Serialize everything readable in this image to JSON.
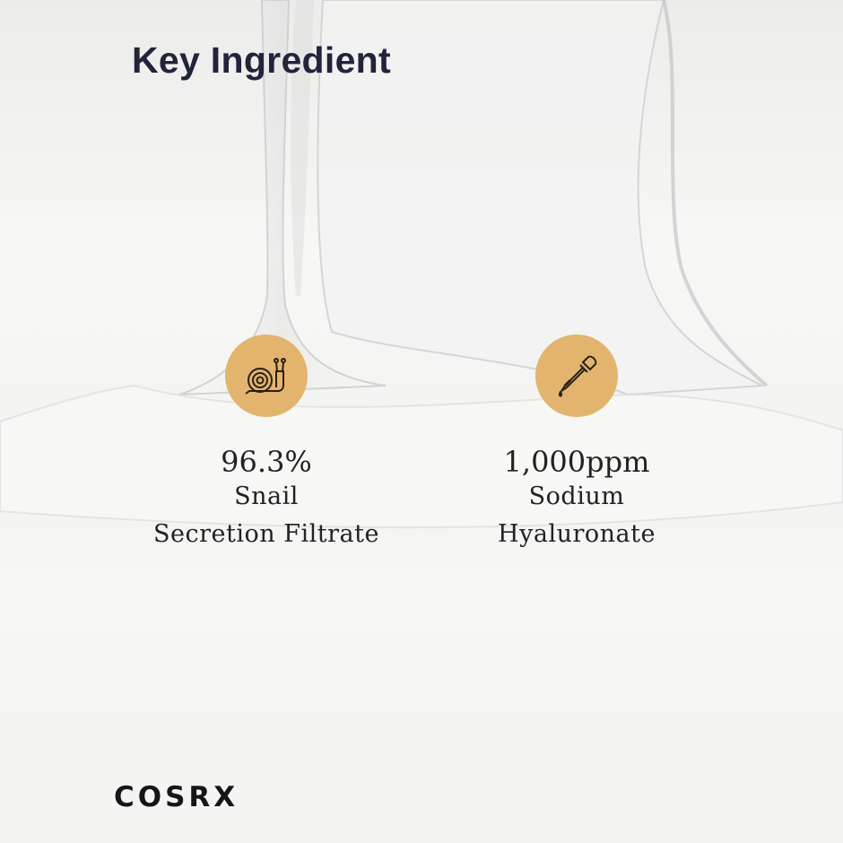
{
  "header": {
    "title": "Key Ingredient"
  },
  "ingredients": [
    {
      "icon": "snail-icon",
      "value": "96.3%",
      "line1": "Snail",
      "line2": "Secretion Filtrate"
    },
    {
      "icon": "dropper-icon",
      "value": "1,000ppm",
      "line1": "Sodium",
      "line2": "Hyaluronate"
    }
  ],
  "brand": {
    "logo": "COSRX"
  },
  "colors": {
    "accent": "#e2b46e",
    "title": "#22243a",
    "text": "#222222"
  }
}
